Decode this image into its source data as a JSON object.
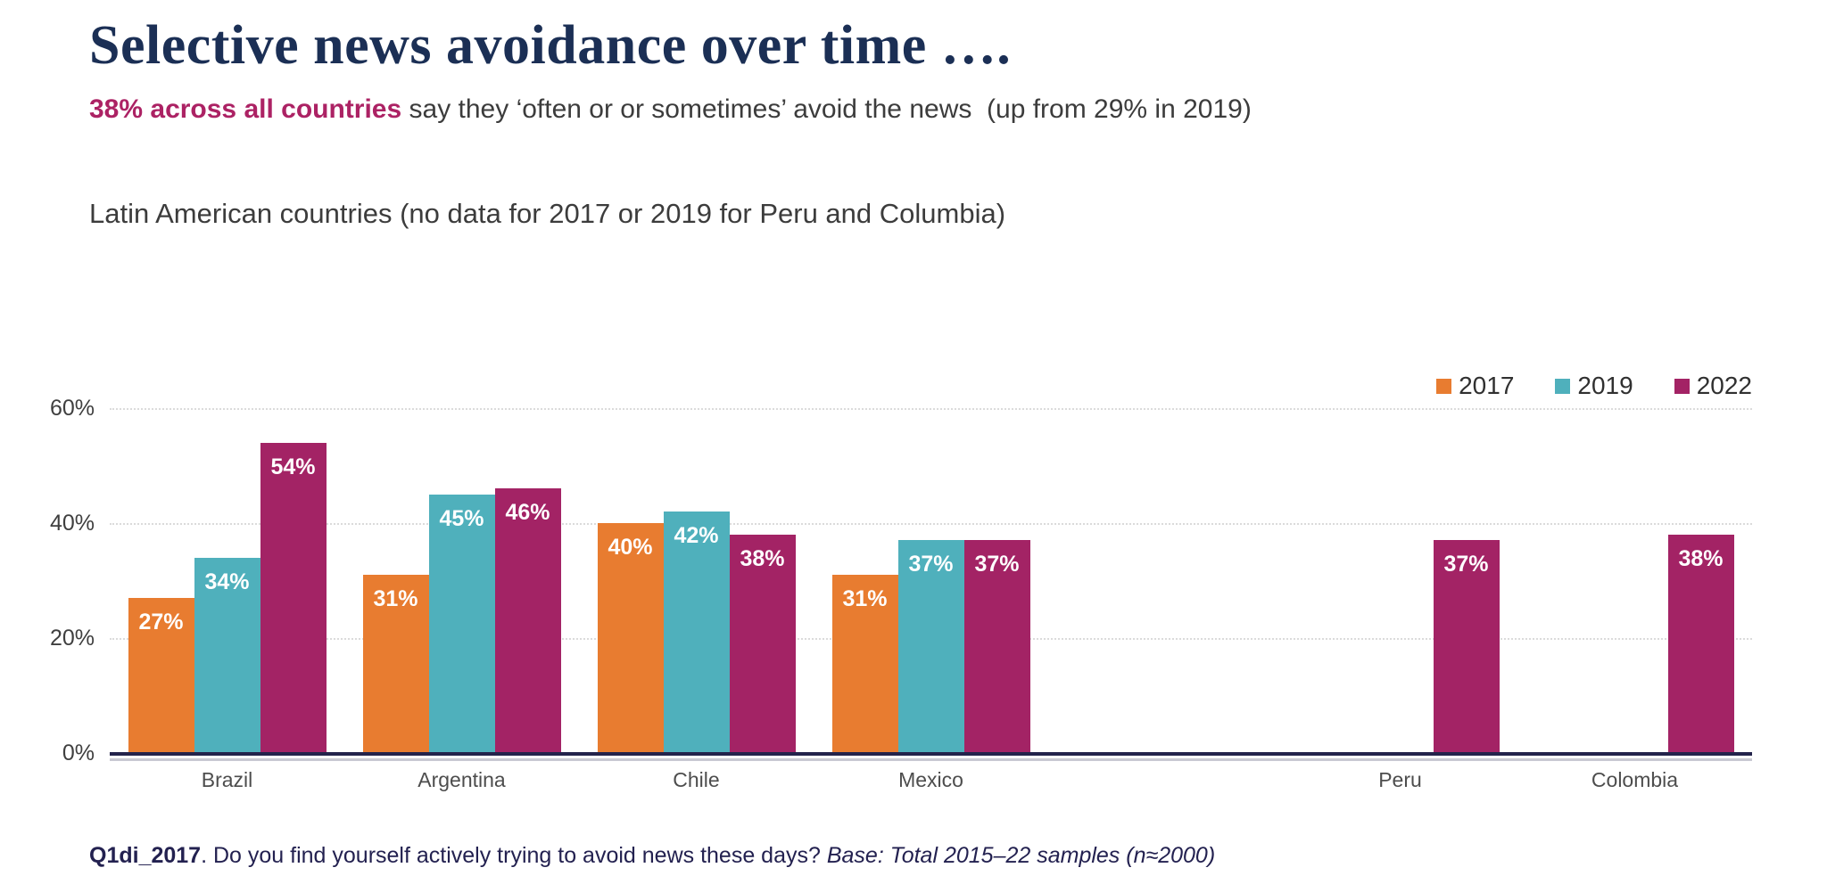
{
  "header": {
    "title": "Selective news avoidance over time ….",
    "subtitle": {
      "highlight": "38% across all countries",
      "rest": " say they ‘often or or sometimes’ avoid the news  (up from 29% in 2019)"
    },
    "section_label": "Latin American countries (no data for 2017 or 2019 for Peru and Columbia)"
  },
  "chart_data": {
    "type": "bar",
    "title": "Selective news avoidance over time",
    "categories": [
      "Brazil",
      "Argentina",
      "Chile",
      "Mexico",
      "Peru",
      "Colombia"
    ],
    "series": [
      {
        "name": "2017",
        "color": "#E87C30",
        "values": [
          27,
          31,
          40,
          31,
          null,
          null
        ]
      },
      {
        "name": "2019",
        "color": "#4FB0BC",
        "values": [
          34,
          45,
          42,
          37,
          null,
          null
        ]
      },
      {
        "name": "2022",
        "color": "#A32365",
        "values": [
          54,
          46,
          38,
          37,
          37,
          38
        ]
      }
    ],
    "data_label_format": "{value}%",
    "y_ticks": [
      {
        "value": 0,
        "label": "0%"
      },
      {
        "value": 20,
        "label": "20%"
      },
      {
        "value": 40,
        "label": "40%"
      },
      {
        "value": 60,
        "label": "60%"
      }
    ],
    "ylim": [
      0,
      60
    ],
    "grid": "horizontal-dotted",
    "legend_position": "top-right",
    "layout_hint": {
      "slot_count": 7,
      "empty_slot_index": 4
    }
  },
  "footer": {
    "question_code": "Q1di_2017",
    "question_text": ". Do you find yourself actively trying to avoid news these days? ",
    "base_note": "Base: Total 2015–22 samples (n≈2000)"
  },
  "colors": {
    "title": "#1B2F55",
    "subtitle_highlight": "#AC2264",
    "body_text": "#3C3C3C",
    "axis_labels": "#3F3F3F",
    "category_labels": "#4D4D4D",
    "gridline": "#DBDBDB",
    "baseline": "#23234B",
    "baseline_shadow": "#C9C9D3",
    "bar_label": "#FFFFFF",
    "legend_text": "#303030",
    "footer_text": "#232150"
  }
}
